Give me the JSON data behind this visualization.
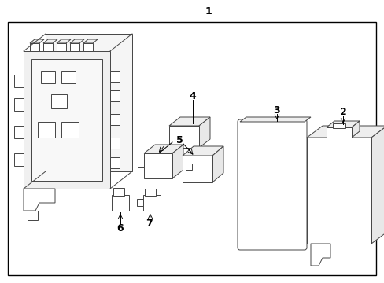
{
  "bg_color": "#ffffff",
  "border_color": "#000000",
  "line_color": "#444444",
  "text_color": "#000000",
  "fig_width": 4.89,
  "fig_height": 3.6,
  "dpi": 100
}
